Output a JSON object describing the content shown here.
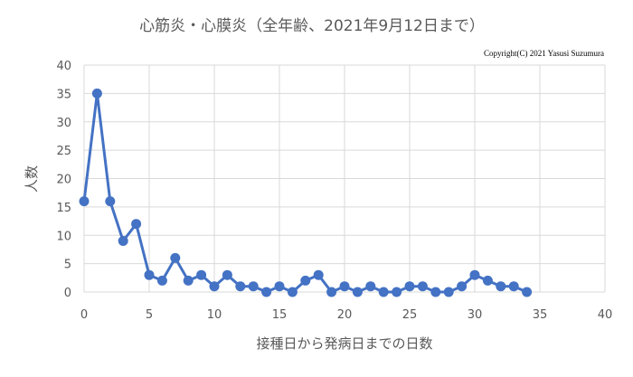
{
  "chart_data": {
    "type": "line",
    "title": "心筋炎・心膜炎（全年齢、2021年9月12日まで）",
    "copyright": "Copyright(C) 2021 Yasusi Suzumura",
    "xlabel": "接種日から発病日までの日数",
    "ylabel": "人数",
    "xlim": [
      0,
      40
    ],
    "ylim": [
      0,
      40
    ],
    "xticks": [
      "0",
      "5",
      "10",
      "15",
      "20",
      "25",
      "30",
      "35",
      "40"
    ],
    "yticks": [
      "0",
      "5",
      "10",
      "15",
      "20",
      "25",
      "30",
      "35",
      "40"
    ],
    "grid": true,
    "legend": "none",
    "series": [
      {
        "color": "#4472c4",
        "x": [
          0,
          1,
          2,
          3,
          4,
          5,
          6,
          7,
          8,
          9,
          10,
          11,
          12,
          13,
          14,
          15,
          16,
          17,
          18,
          19,
          20,
          21,
          22,
          23,
          24,
          25,
          26,
          27,
          28,
          29,
          30,
          31,
          32,
          33,
          34
        ],
        "y": [
          16,
          35,
          16,
          9,
          12,
          3,
          2,
          6,
          2,
          3,
          1,
          3,
          1,
          1,
          0,
          1,
          0,
          2,
          3,
          0,
          1,
          0,
          1,
          0,
          0,
          1,
          1,
          0,
          0,
          1,
          3,
          2,
          1,
          1,
          0
        ]
      }
    ]
  }
}
